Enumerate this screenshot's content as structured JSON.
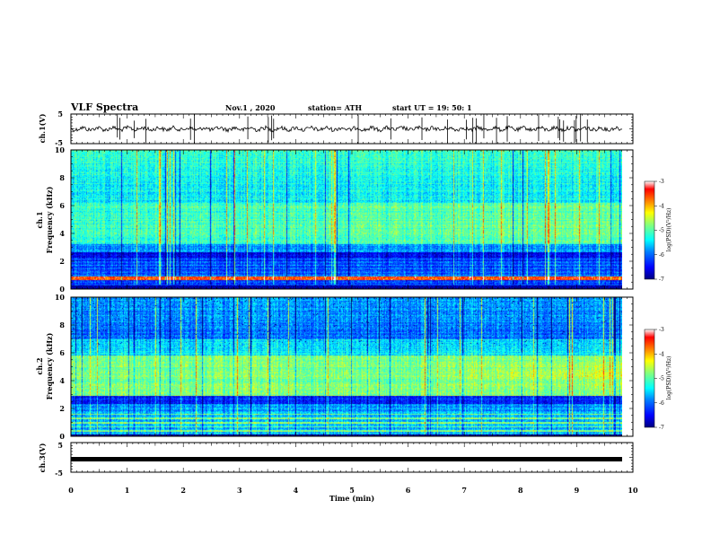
{
  "header": {
    "title": "VLF Spectra",
    "date": "Nov.1  , 2020",
    "station": "station= ATH",
    "start": "start  UT  =   19: 50: 1"
  },
  "colors": {
    "scale": [
      "#000080",
      "#0000ff",
      "#0080ff",
      "#00ffff",
      "#80ff80",
      "#ffff00",
      "#ff8000",
      "#ff0000",
      "#ffffff"
    ]
  },
  "chart_data": [
    {
      "type": "line",
      "name": "ch1-waveform",
      "ylabel": "ch.1(V)",
      "ylim": [
        -5,
        5
      ],
      "yticks": [
        "5",
        "-5"
      ],
      "xlim": [
        0,
        10
      ]
    },
    {
      "type": "heatmap",
      "name": "ch1-spectrogram",
      "ylabel_line1": "ch.1",
      "ylabel_line2": "Frequency  (kHz)",
      "ylim": [
        0,
        10
      ],
      "yticks": [
        "0",
        "2",
        "4",
        "6",
        "8",
        "10"
      ],
      "xlim": [
        0,
        10
      ],
      "colorbar": {
        "ticks": [
          "-3",
          "-4",
          "-5",
          "-6",
          "-7"
        ],
        "range": [
          -7,
          -3
        ],
        "label": "log(PSD)(V²/Hz)"
      }
    },
    {
      "type": "heatmap",
      "name": "ch2-spectrogram",
      "ylabel_line1": "ch.2",
      "ylabel_line2": "Frequency  (kHz)",
      "ylim": [
        0,
        10
      ],
      "yticks": [
        "0",
        "2",
        "4",
        "6",
        "8",
        "10"
      ],
      "xlim": [
        0,
        10
      ],
      "colorbar": {
        "ticks": [
          "-3",
          "-4",
          "-5",
          "-6",
          "-7"
        ],
        "range": [
          -7,
          -3
        ],
        "label": "log(PSD)(V²/Hz)"
      }
    },
    {
      "type": "line",
      "name": "ch3-waveform",
      "ylabel": "ch.3(V)",
      "ylim": [
        -5,
        5
      ],
      "yticks": [
        "5",
        "-5"
      ],
      "xlim": [
        0,
        10
      ]
    }
  ],
  "xaxis": {
    "label": "Time  (min)",
    "ticks": [
      "0",
      "1",
      "2",
      "3",
      "4",
      "5",
      "6",
      "7",
      "8",
      "9",
      "10"
    ]
  }
}
